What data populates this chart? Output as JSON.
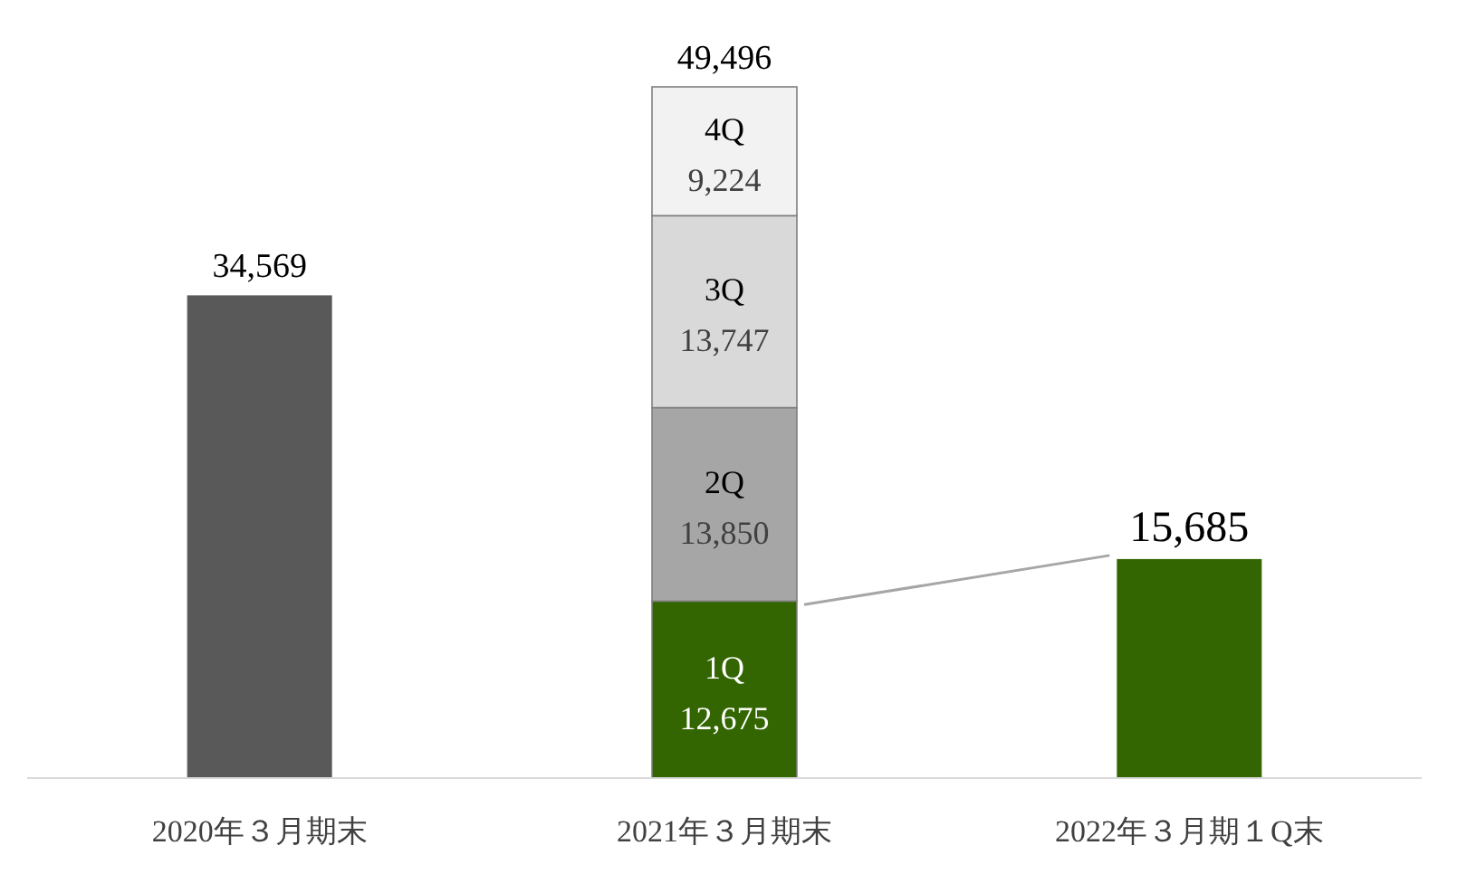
{
  "chart_data": {
    "type": "bar",
    "stacked": true,
    "categories": [
      "2020年３月期末",
      "2021年３月期末",
      "2022年３月期１Q末"
    ],
    "series": [
      {
        "name": "1Q",
        "colors": [
          "#595959",
          "#336600",
          "#336600"
        ],
        "values": [
          34569,
          12675,
          15685
        ],
        "value_labels": [
          null,
          "12,675",
          null
        ]
      },
      {
        "name": "2Q",
        "color": "#a6a6a6",
        "values": [
          null,
          13850,
          null
        ],
        "value_labels": [
          null,
          "13,850",
          null
        ]
      },
      {
        "name": "3Q",
        "color": "#d9d9d9",
        "values": [
          null,
          13747,
          null
        ],
        "value_labels": [
          null,
          "13,747",
          null
        ]
      },
      {
        "name": "4Q",
        "color": "#f2f2f2",
        "values": [
          null,
          9224,
          null
        ],
        "value_labels": [
          null,
          "9,224",
          null
        ]
      }
    ],
    "totals": [
      "34,569",
      "49,496",
      "15,685"
    ]
  }
}
